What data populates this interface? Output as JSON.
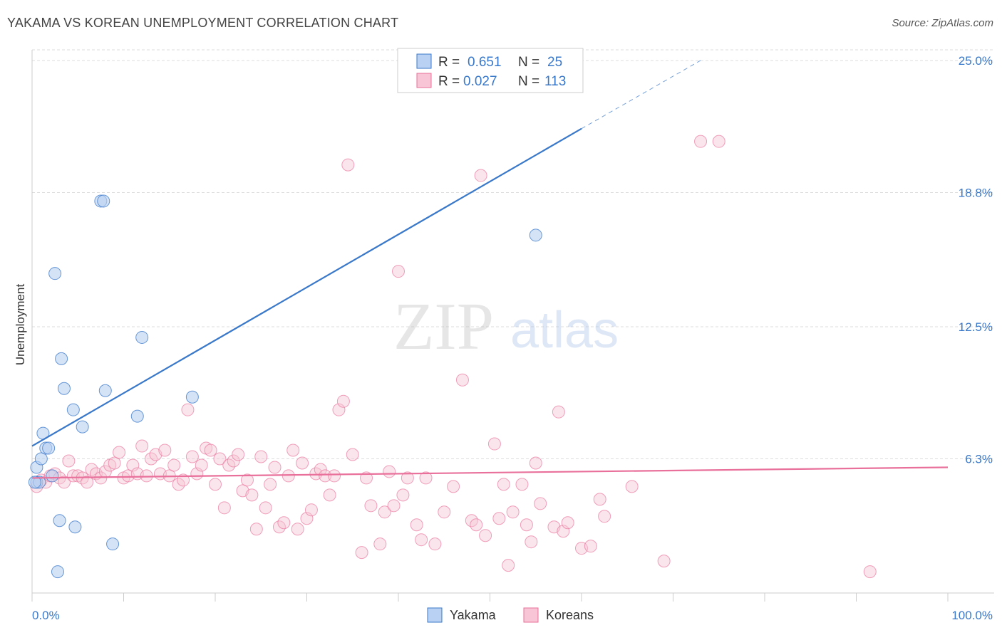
{
  "title": "YAKAMA VS KOREAN UNEMPLOYMENT CORRELATION CHART",
  "source": "Source: ZipAtlas.com",
  "watermark": {
    "zip": "ZIP",
    "atlas": "atlas"
  },
  "colors": {
    "blue": "#3a78c9",
    "blue_fill": "#b9d1f2",
    "pink": "#e8709a",
    "pink_fill": "#f7c5d5",
    "grid": "#dddddd"
  },
  "legend": {
    "r_label": "R =",
    "n_label": "N =",
    "rows": [
      {
        "series": "Yakama",
        "r": "0.651",
        "n": "25"
      },
      {
        "series": "Koreans",
        "r": "0.027",
        "n": "113"
      }
    ]
  },
  "chart_data": {
    "type": "scatter",
    "title": "YAKAMA VS KOREAN UNEMPLOYMENT CORRELATION CHART",
    "xlabel": "",
    "ylabel": "Unemployment",
    "xlim": [
      0,
      100
    ],
    "ylim": [
      0,
      25.5
    ],
    "x_tick_labels": [
      "0.0%",
      "100.0%"
    ],
    "y_ticks": [
      6.3,
      12.5,
      18.8,
      25.0
    ],
    "y_tick_labels": [
      "6.3%",
      "12.5%",
      "18.8%",
      "25.0%"
    ],
    "grid": true,
    "legend_position": "top-center",
    "series": [
      {
        "name": "Yakama",
        "color": "#3a78c9",
        "points": [
          [
            0.5,
            5.9
          ],
          [
            0.5,
            5.2
          ],
          [
            0.8,
            5.2
          ],
          [
            1.0,
            6.3
          ],
          [
            1.2,
            7.5
          ],
          [
            1.5,
            6.8
          ],
          [
            1.8,
            6.8
          ],
          [
            2.2,
            5.5
          ],
          [
            2.5,
            15.0
          ],
          [
            2.8,
            1.0
          ],
          [
            3.0,
            3.4
          ],
          [
            3.2,
            11.0
          ],
          [
            3.5,
            9.6
          ],
          [
            4.5,
            8.6
          ],
          [
            4.7,
            3.1
          ],
          [
            5.5,
            7.8
          ],
          [
            7.5,
            18.4
          ],
          [
            7.8,
            18.4
          ],
          [
            8.0,
            9.5
          ],
          [
            8.8,
            2.3
          ],
          [
            11.5,
            8.3
          ],
          [
            12.0,
            12.0
          ],
          [
            17.5,
            9.2
          ],
          [
            55.0,
            16.8
          ],
          [
            0.3,
            5.2
          ]
        ],
        "trend": {
          "x": [
            0,
            60
          ],
          "y": [
            6.9,
            21.8
          ],
          "dashed_to": [
            73,
            25.0
          ]
        }
      },
      {
        "name": "Koreans",
        "color": "#e8709a",
        "points": [
          [
            0.5,
            5.0
          ],
          [
            1.0,
            5.3
          ],
          [
            1.5,
            5.2
          ],
          [
            2.0,
            5.5
          ],
          [
            2.5,
            5.6
          ],
          [
            3.0,
            5.4
          ],
          [
            3.5,
            5.2
          ],
          [
            4.0,
            6.2
          ],
          [
            4.5,
            5.5
          ],
          [
            5.0,
            5.5
          ],
          [
            5.5,
            5.4
          ],
          [
            6.0,
            5.2
          ],
          [
            6.5,
            5.8
          ],
          [
            7.0,
            5.6
          ],
          [
            7.5,
            5.4
          ],
          [
            8.0,
            5.7
          ],
          [
            8.5,
            6.0
          ],
          [
            9.0,
            6.1
          ],
          [
            9.5,
            6.6
          ],
          [
            10.0,
            5.4
          ],
          [
            10.5,
            5.5
          ],
          [
            11.0,
            6.0
          ],
          [
            11.5,
            5.6
          ],
          [
            12.0,
            6.9
          ],
          [
            12.5,
            5.5
          ],
          [
            13.0,
            6.3
          ],
          [
            13.5,
            6.5
          ],
          [
            14.0,
            5.6
          ],
          [
            14.5,
            6.7
          ],
          [
            15.0,
            5.5
          ],
          [
            15.5,
            6.0
          ],
          [
            16.0,
            5.1
          ],
          [
            16.5,
            5.3
          ],
          [
            17.0,
            8.6
          ],
          [
            17.5,
            6.4
          ],
          [
            18.0,
            5.6
          ],
          [
            18.5,
            6.0
          ],
          [
            19.0,
            6.8
          ],
          [
            19.5,
            6.7
          ],
          [
            20.0,
            5.1
          ],
          [
            20.5,
            6.3
          ],
          [
            21.0,
            4.0
          ],
          [
            21.5,
            6.0
          ],
          [
            22.0,
            6.2
          ],
          [
            22.5,
            6.5
          ],
          [
            23.0,
            4.8
          ],
          [
            23.5,
            5.3
          ],
          [
            24.0,
            4.6
          ],
          [
            24.5,
            3.0
          ],
          [
            25.0,
            6.4
          ],
          [
            25.5,
            4.0
          ],
          [
            26.0,
            5.1
          ],
          [
            26.5,
            5.9
          ],
          [
            27.0,
            3.1
          ],
          [
            27.5,
            3.3
          ],
          [
            28.0,
            5.5
          ],
          [
            28.5,
            6.7
          ],
          [
            29.0,
            3.0
          ],
          [
            29.5,
            6.1
          ],
          [
            30.0,
            3.5
          ],
          [
            30.5,
            3.9
          ],
          [
            31.0,
            5.6
          ],
          [
            31.5,
            5.8
          ],
          [
            32.0,
            5.5
          ],
          [
            32.5,
            4.6
          ],
          [
            33.0,
            5.5
          ],
          [
            33.5,
            8.6
          ],
          [
            34.0,
            9.0
          ],
          [
            34.5,
            20.1
          ],
          [
            35.0,
            6.5
          ],
          [
            36.0,
            1.9
          ],
          [
            36.5,
            5.4
          ],
          [
            37.0,
            4.1
          ],
          [
            38.0,
            2.3
          ],
          [
            38.5,
            3.8
          ],
          [
            39.0,
            5.7
          ],
          [
            39.5,
            4.1
          ],
          [
            40.0,
            15.1
          ],
          [
            40.5,
            4.6
          ],
          [
            41.0,
            5.4
          ],
          [
            42.0,
            3.2
          ],
          [
            42.5,
            2.5
          ],
          [
            43.0,
            5.4
          ],
          [
            44.0,
            2.3
          ],
          [
            45.0,
            3.8
          ],
          [
            46.0,
            5.0
          ],
          [
            47.0,
            10.0
          ],
          [
            48.0,
            3.4
          ],
          [
            48.5,
            3.2
          ],
          [
            49.0,
            19.6
          ],
          [
            49.5,
            2.7
          ],
          [
            50.5,
            7.0
          ],
          [
            51.0,
            3.5
          ],
          [
            51.5,
            5.1
          ],
          [
            52.0,
            1.3
          ],
          [
            52.5,
            3.8
          ],
          [
            53.5,
            5.1
          ],
          [
            54.0,
            3.2
          ],
          [
            54.5,
            2.4
          ],
          [
            55.0,
            6.1
          ],
          [
            55.5,
            4.2
          ],
          [
            57.0,
            3.1
          ],
          [
            57.5,
            8.5
          ],
          [
            58.0,
            2.9
          ],
          [
            58.5,
            3.3
          ],
          [
            60.0,
            2.1
          ],
          [
            61.0,
            2.2
          ],
          [
            62.0,
            4.4
          ],
          [
            62.5,
            3.6
          ],
          [
            65.5,
            5.0
          ],
          [
            69.0,
            1.5
          ],
          [
            73.0,
            21.2
          ],
          [
            75.0,
            21.2
          ],
          [
            91.5,
            1.0
          ]
        ],
        "trend": {
          "x": [
            0,
            100
          ],
          "y": [
            5.4,
            5.9
          ]
        }
      }
    ]
  }
}
